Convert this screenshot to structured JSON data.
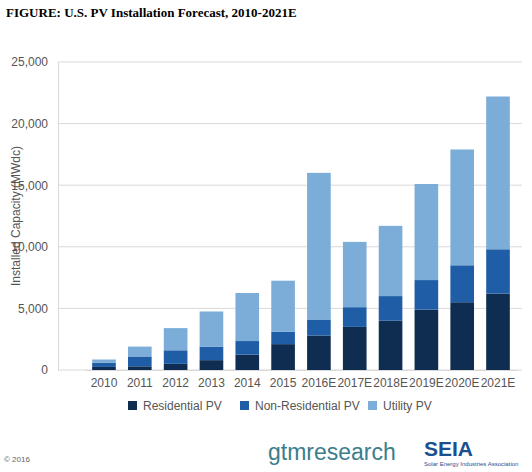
{
  "chart_data": {
    "type": "bar",
    "title": "FIGURE: U.S. PV Installation Forecast, 2010-2021E",
    "y_label": "Installed Capacity (MWdc)",
    "categories": [
      "2010",
      "2011",
      "2012",
      "2013",
      "2014",
      "2015",
      "2016E",
      "2017E",
      "2018E",
      "2019E",
      "2020E",
      "2021E"
    ],
    "series": [
      {
        "name": "Residential PV",
        "color": "#0f2d50",
        "values": [
          250,
          300,
          500,
          800,
          1250,
          2100,
          2800,
          3500,
          4000,
          4900,
          5500,
          6200
        ]
      },
      {
        "name": "Non-Residential PV",
        "color": "#1f5ea6",
        "values": [
          350,
          800,
          1100,
          1100,
          1100,
          1000,
          1300,
          1600,
          2000,
          2400,
          3000,
          3600
        ]
      },
      {
        "name": "Utility PV",
        "color": "#7badd8",
        "values": [
          250,
          800,
          1800,
          2850,
          3900,
          4150,
          11900,
          5300,
          5700,
          7800,
          9400,
          12400
        ]
      }
    ],
    "stacked": true,
    "ylim": [
      0,
      25000
    ],
    "yticks": [
      0,
      {
        "value": 5000,
        "label": "5,000"
      },
      {
        "value": 10000,
        "label": "10,000"
      },
      {
        "value": 15000,
        "label": "15,000"
      },
      {
        "value": 20000,
        "label": "20,000"
      },
      {
        "value": 25000,
        "label": "25,000"
      }
    ],
    "grid": true,
    "legend": "bottom",
    "annotations": [
      "© 2016",
      "gtmresearch",
      "SEIA",
      "Solar Energy Industries Association"
    ]
  }
}
